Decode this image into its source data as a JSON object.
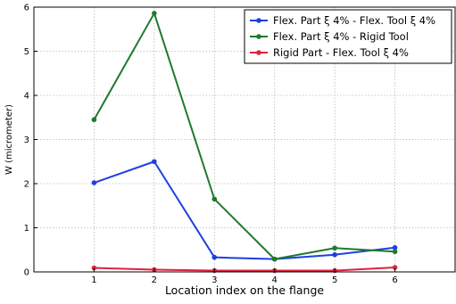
{
  "chart_data": {
    "type": "line",
    "title": "",
    "xlabel": "Location index on the flange",
    "ylabel": "W (micrometer)",
    "x": [
      1,
      2,
      3,
      4,
      5,
      6
    ],
    "xticks": [
      "1",
      "2",
      "3",
      "4",
      "5",
      "6"
    ],
    "xlim": [
      0,
      7
    ],
    "ylim": [
      0,
      6
    ],
    "yticks": [
      "0",
      "1",
      "2",
      "3",
      "4",
      "5",
      "6"
    ],
    "grid": true,
    "legend_position": "top-right",
    "series": [
      {
        "name": "Flex. Part ξ 4% - Flex. Tool ξ 4%",
        "color": "#1f3fe0",
        "values": [
          2.02,
          2.5,
          0.33,
          0.29,
          0.39,
          0.55
        ]
      },
      {
        "name": "Flex. Part ξ 4% - Rigid Tool",
        "color": "#1f7a2e",
        "values": [
          3.45,
          5.86,
          1.65,
          0.29,
          0.54,
          0.46
        ]
      },
      {
        "name": "Rigid Part - Flex. Tool ξ 4%",
        "color": "#e0203f",
        "values": [
          0.09,
          0.05,
          0.03,
          0.03,
          0.03,
          0.1
        ]
      }
    ]
  }
}
